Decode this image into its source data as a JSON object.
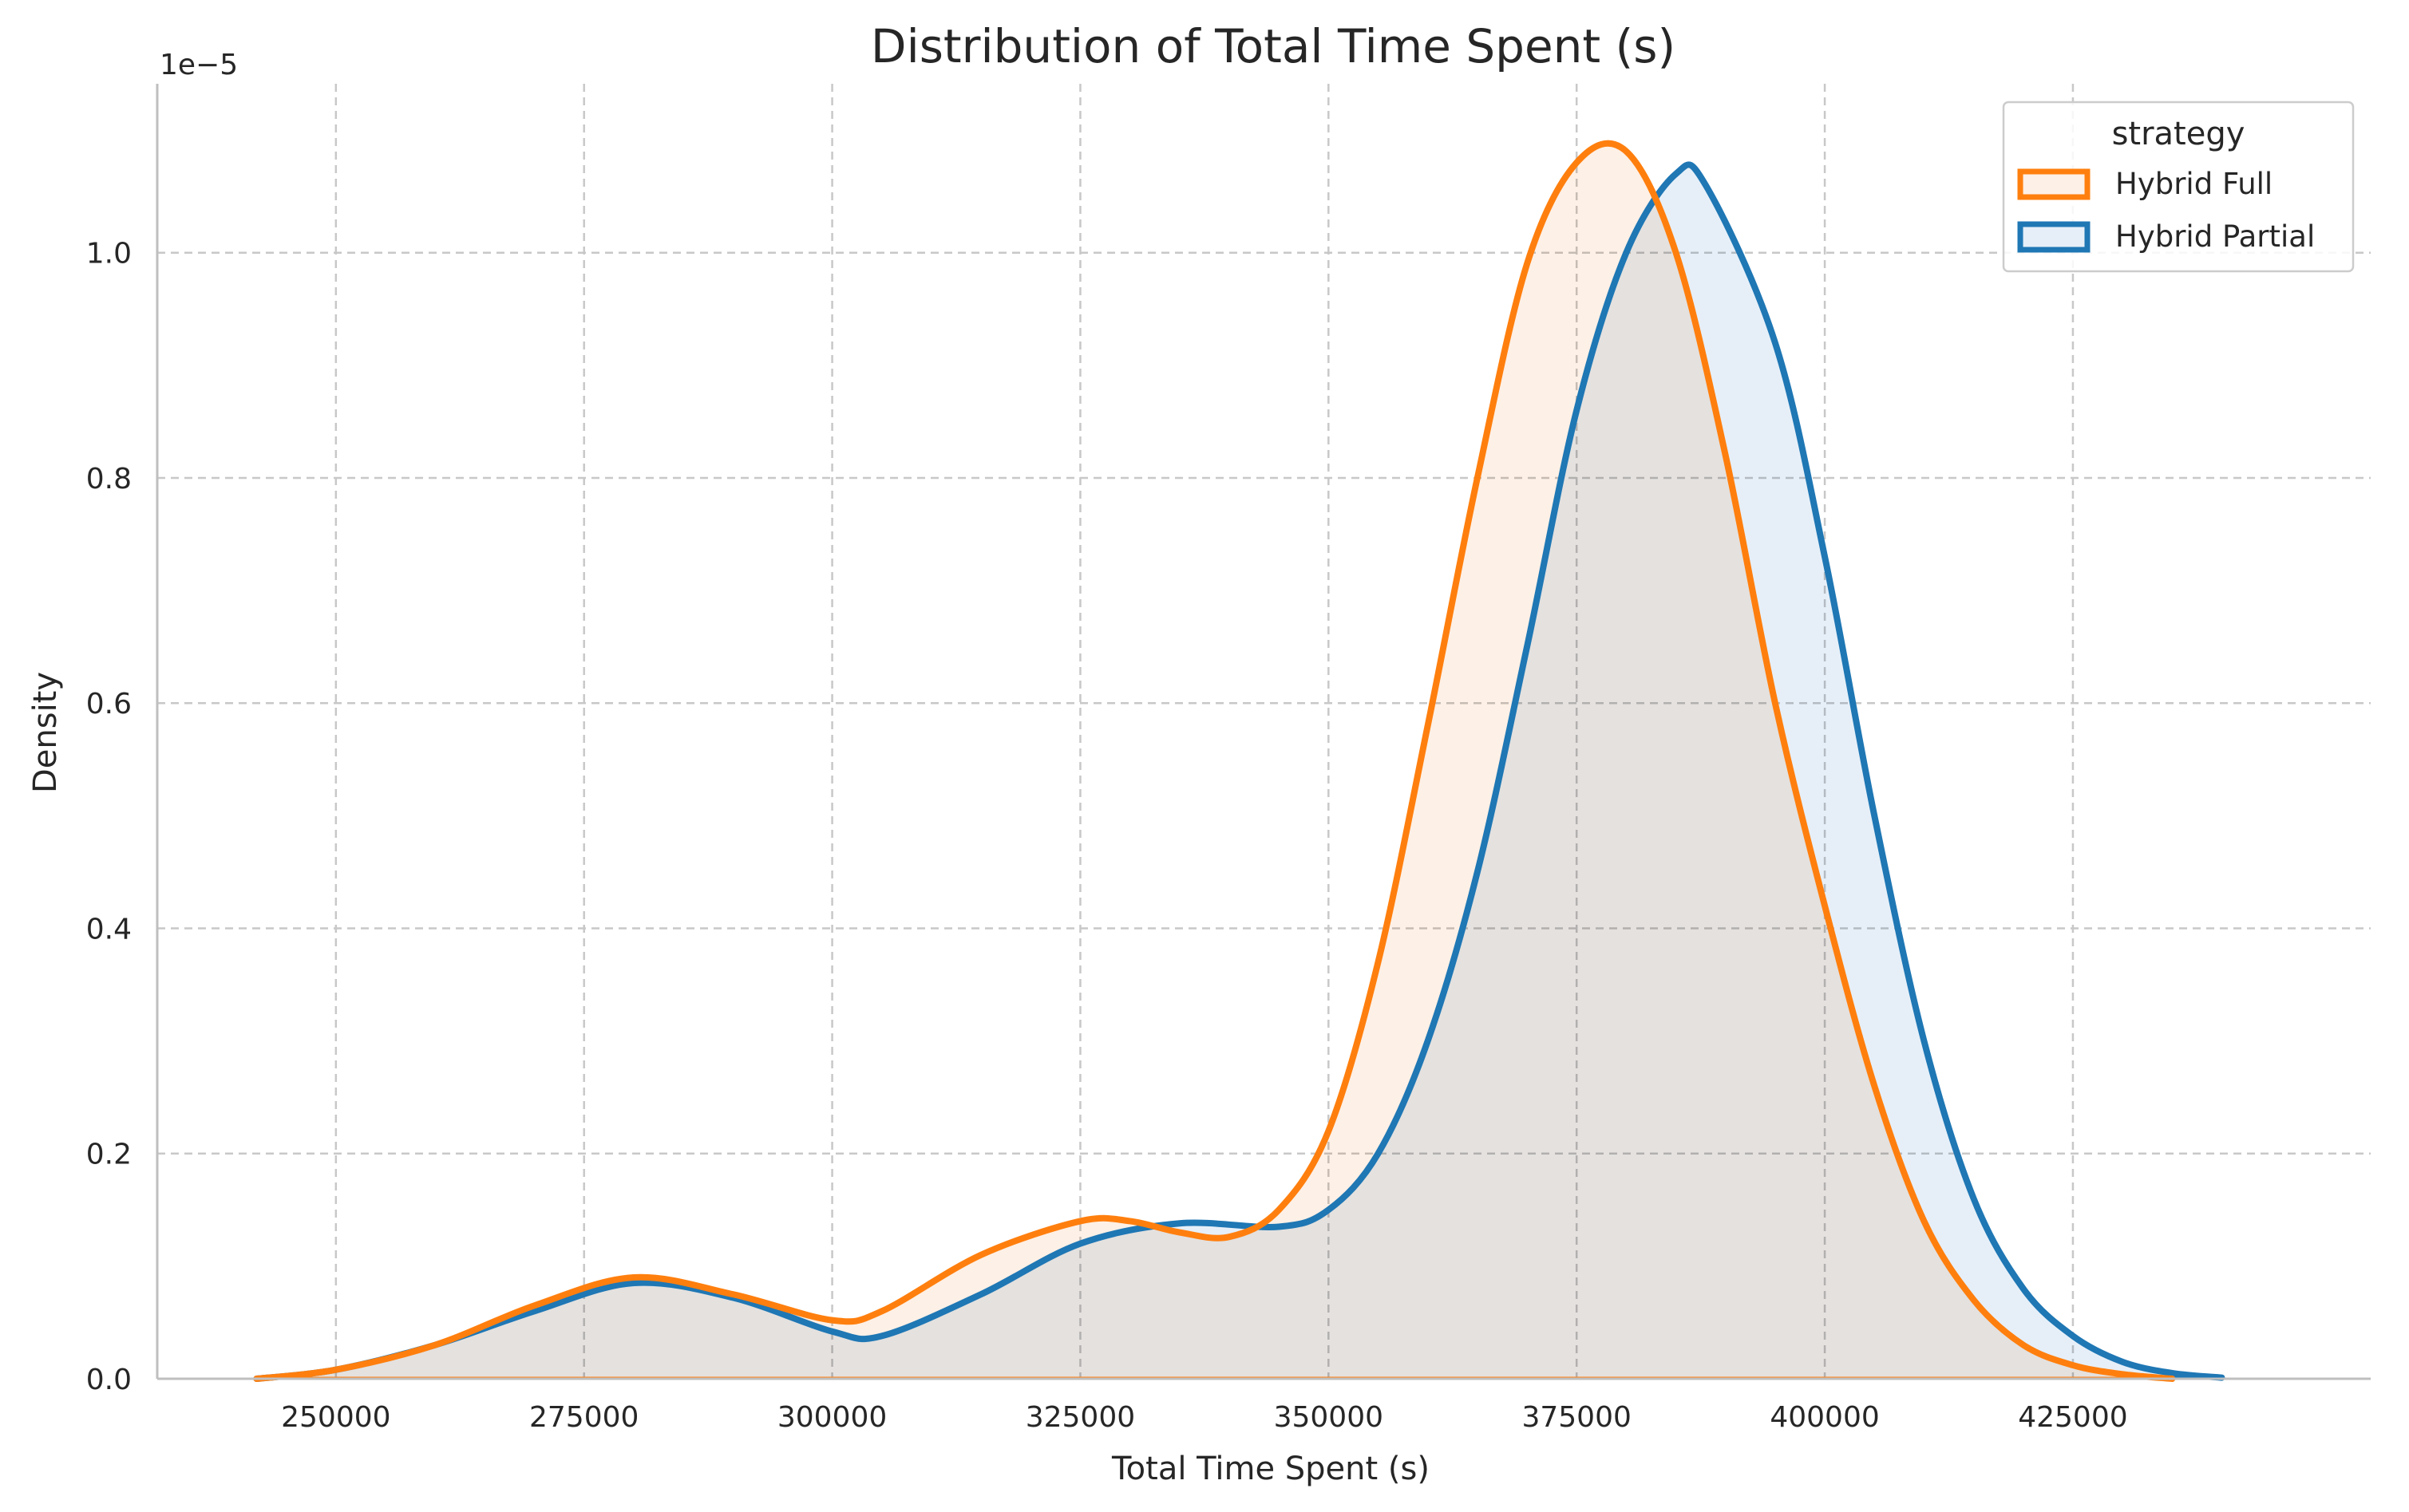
{
  "chart_data": {
    "type": "area",
    "title": "Distribution of Total Time Spent (s)",
    "xlabel": "Total Time Spent (s)",
    "ylabel": "Density",
    "y_offset_label": "1e−5",
    "xlim": [
      232000,
      455000
    ],
    "ylim": [
      0,
      1.15
    ],
    "x_ticks": [
      250000,
      275000,
      300000,
      325000,
      350000,
      375000,
      400000,
      425000
    ],
    "y_ticks": [
      0.0,
      0.2,
      0.4,
      0.6,
      0.8,
      1.0
    ],
    "grid": true,
    "legend": {
      "title": "strategy",
      "position": "top-right"
    },
    "series": [
      {
        "name": "Hybrid Partial",
        "color": "#1f77b4",
        "fill": "#e6eff8",
        "x": [
          242000,
          250000,
          260000,
          270000,
          280000,
          290000,
          300000,
          305000,
          315000,
          325000,
          335000,
          345000,
          350000,
          355000,
          360000,
          365000,
          370000,
          375000,
          380000,
          385000,
          388000,
          395000,
          400000,
          405000,
          410000,
          415000,
          420000,
          425000,
          430000,
          435000,
          440000
        ],
        "y": [
          0.0,
          0.008,
          0.03,
          0.06,
          0.085,
          0.072,
          0.042,
          0.038,
          0.075,
          0.12,
          0.138,
          0.135,
          0.15,
          0.2,
          0.3,
          0.45,
          0.65,
          0.86,
          1.0,
          1.07,
          1.06,
          0.92,
          0.73,
          0.5,
          0.3,
          0.16,
          0.08,
          0.038,
          0.015,
          0.005,
          0.001
        ]
      },
      {
        "name": "Hybrid Full",
        "color": "#ff7f0e",
        "fill": "#fdf0e6",
        "x": [
          242000,
          250000,
          260000,
          270000,
          280000,
          290000,
          300000,
          305000,
          315000,
          325000,
          330000,
          335000,
          340000,
          345000,
          350000,
          355000,
          360000,
          365000,
          370000,
          375000,
          380000,
          385000,
          390000,
          395000,
          400000,
          405000,
          410000,
          415000,
          420000,
          425000,
          430000,
          435000
        ],
        "y": [
          0.0,
          0.008,
          0.03,
          0.065,
          0.09,
          0.075,
          0.052,
          0.06,
          0.11,
          0.14,
          0.14,
          0.13,
          0.126,
          0.15,
          0.22,
          0.37,
          0.58,
          0.8,
          0.99,
          1.08,
          1.09,
          1.0,
          0.82,
          0.6,
          0.42,
          0.26,
          0.14,
          0.07,
          0.03,
          0.012,
          0.004,
          0.0
        ]
      }
    ]
  }
}
